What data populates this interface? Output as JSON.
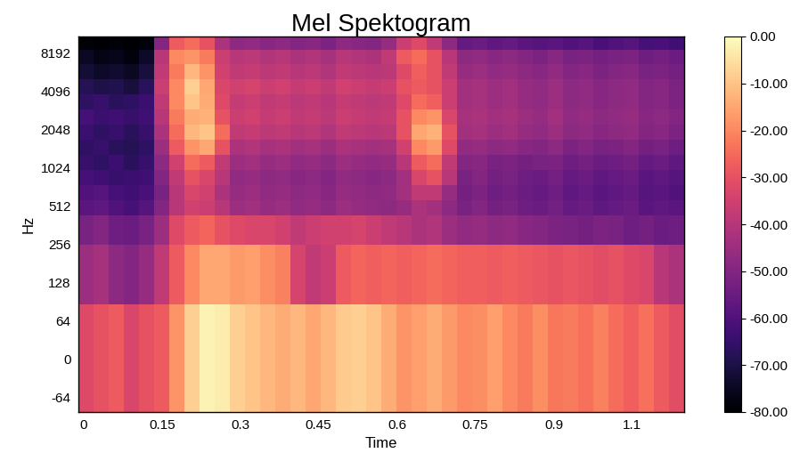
{
  "chart_data": {
    "type": "heatmap",
    "title": "Mel Spektogram",
    "x_label": "Time",
    "y_label": "Hz",
    "log": "y",
    "color": "magma",
    "xlim": [
      -0.01,
      1.15
    ],
    "ylim": [
      -83,
      10980
    ],
    "xticks": [
      0,
      0.15,
      0.3,
      0.45,
      0.6,
      0.75,
      0.9,
      {
        "value": 1.05,
        "label": "1.1"
      }
    ],
    "yticks": [
      -64,
      0,
      64,
      128,
      256,
      512,
      1024,
      2048,
      4096,
      8192
    ],
    "x_edges": [
      -0.01,
      0.019,
      0.048,
      0.077,
      0.106,
      0.135,
      0.164,
      0.193,
      0.222,
      0.251,
      0.28,
      0.309,
      0.338,
      0.367,
      0.396,
      0.425,
      0.454,
      0.483,
      0.512,
      0.541,
      0.57,
      0.599,
      0.628,
      0.657,
      0.686,
      0.715,
      0.744,
      0.773,
      0.802,
      0.831,
      0.86,
      0.889,
      0.918,
      0.947,
      0.976,
      1.005,
      1.034,
      1.063,
      1.092,
      1.121,
      1.15
    ],
    "y_edges": [
      -83,
      87,
      255,
      433,
      569,
      749,
      984,
      1293,
      1700,
      2234,
      2937,
      3859,
      5074,
      6669,
      8621,
      10980
    ],
    "cells": [
      [
        -32,
        -30,
        -28,
        -33,
        -30,
        -28,
        -18,
        -8,
        -2,
        -3,
        -8,
        -10,
        -12,
        -14,
        -12,
        -15,
        -12,
        -9,
        -8,
        -10,
        -14,
        -18,
        -16,
        -14,
        -17,
        -20,
        -19,
        -16,
        -20,
        -22,
        -19,
        -23,
        -22,
        -24,
        -21,
        -25,
        -27,
        -24,
        -28,
        -31
      ],
      [
        -45,
        -43,
        -48,
        -50,
        -46,
        -38,
        -28,
        -20,
        -15,
        -15,
        -17,
        -16,
        -19,
        -21,
        -34,
        -38,
        -36,
        -28,
        -26,
        -27,
        -26,
        -27,
        -26,
        -25,
        -26,
        -27,
        -27,
        -28,
        -27,
        -28,
        -29,
        -30,
        -29,
        -30,
        -31,
        -30,
        -32,
        -33,
        -40,
        -42
      ],
      [
        -52,
        -50,
        -54,
        -55,
        -52,
        -45,
        -32,
        -28,
        -26,
        -30,
        -32,
        -33,
        -33,
        -35,
        -38,
        -36,
        -35,
        -35,
        -34,
        -36,
        -38,
        -40,
        -42,
        -41,
        -45,
        -47,
        -46,
        -48,
        -47,
        -49,
        -50,
        -51,
        -52,
        -53,
        -51,
        -52,
        -54,
        -53,
        -55,
        -54
      ],
      [
        -58,
        -57,
        -60,
        -62,
        -59,
        -50,
        -40,
        -35,
        -36,
        -40,
        -45,
        -44,
        -46,
        -45,
        -47,
        -46,
        -48,
        -45,
        -46,
        -47,
        -48,
        -46,
        -42,
        -44,
        -48,
        -52,
        -50,
        -53,
        -52,
        -54,
        -55,
        -53,
        -56,
        -55,
        -57,
        -56,
        -55,
        -58,
        -57,
        -58
      ],
      [
        -60,
        -59,
        -62,
        -63,
        -61,
        -52,
        -40,
        -33,
        -35,
        -42,
        -46,
        -45,
        -47,
        -46,
        -48,
        -47,
        -49,
        -46,
        -47,
        -48,
        -47,
        -44,
        -38,
        -38,
        -46,
        -53,
        -51,
        -54,
        -53,
        -55,
        -56,
        -54,
        -57,
        -56,
        -58,
        -57,
        -56,
        -59,
        -58,
        -60
      ],
      [
        -62,
        -63,
        -65,
        -64,
        -63,
        -50,
        -38,
        -30,
        -33,
        -40,
        -47,
        -46,
        -48,
        -47,
        -49,
        -48,
        -50,
        -47,
        -48,
        -49,
        -48,
        -44,
        -33,
        -30,
        -40,
        -52,
        -50,
        -53,
        -52,
        -54,
        -55,
        -53,
        -56,
        -55,
        -57,
        -56,
        -55,
        -58,
        -57,
        -59
      ],
      [
        -65,
        -66,
        -64,
        -67,
        -65,
        -48,
        -35,
        -25,
        -28,
        -38,
        -45,
        -44,
        -46,
        -45,
        -47,
        -46,
        -48,
        -45,
        -46,
        -47,
        -46,
        -40,
        -28,
        -25,
        -38,
        -50,
        -49,
        -52,
        -51,
        -53,
        -52,
        -51,
        -54,
        -53,
        -55,
        -54,
        -53,
        -56,
        -55,
        -57
      ],
      [
        -66,
        -65,
        -67,
        -68,
        -66,
        -45,
        -28,
        -18,
        -15,
        -30,
        -42,
        -41,
        -43,
        -42,
        -44,
        -43,
        -45,
        -42,
        -43,
        -44,
        -43,
        -35,
        -20,
        -17,
        -32,
        -47,
        -46,
        -48,
        -47,
        -49,
        -50,
        -48,
        -51,
        -50,
        -52,
        -51,
        -50,
        -53,
        -52,
        -54
      ],
      [
        -64,
        -66,
        -65,
        -67,
        -65,
        -42,
        -25,
        -12,
        -10,
        -25,
        -38,
        -37,
        -39,
        -38,
        -40,
        -39,
        -41,
        -38,
        -39,
        -40,
        -39,
        -30,
        -15,
        -13,
        -30,
        -44,
        -43,
        -45,
        -44,
        -46,
        -47,
        -45,
        -48,
        -47,
        -49,
        -48,
        -47,
        -50,
        -49,
        -51
      ],
      [
        -62,
        -64,
        -63,
        -65,
        -63,
        -40,
        -22,
        -14,
        -13,
        -30,
        -36,
        -35,
        -37,
        -36,
        -38,
        -37,
        -39,
        -36,
        -37,
        -38,
        -37,
        -30,
        -20,
        -18,
        -33,
        -43,
        -42,
        -44,
        -43,
        -45,
        -46,
        -44,
        -47,
        -46,
        -48,
        -47,
        -46,
        -49,
        -48,
        -50
      ],
      [
        -66,
        -65,
        -67,
        -66,
        -64,
        -38,
        -20,
        -10,
        -14,
        -32,
        -37,
        -36,
        -38,
        -37,
        -39,
        -38,
        -40,
        -37,
        -38,
        -39,
        -38,
        -32,
        -25,
        -27,
        -36,
        -44,
        -43,
        -45,
        -44,
        -46,
        -47,
        -45,
        -48,
        -47,
        -49,
        -48,
        -47,
        -50,
        -49,
        -51
      ],
      [
        -68,
        -70,
        -69,
        -71,
        -67,
        -36,
        -20,
        -8,
        -15,
        -33,
        -35,
        -34,
        -36,
        -35,
        -37,
        -36,
        -38,
        -35,
        -36,
        -37,
        -36,
        -30,
        -28,
        -30,
        -36,
        -44,
        -43,
        -45,
        -44,
        -46,
        -47,
        -45,
        -48,
        -47,
        -49,
        -48,
        -47,
        -50,
        -49,
        -51
      ],
      [
        -72,
        -74,
        -73,
        -75,
        -71,
        -38,
        -22,
        -12,
        -18,
        -35,
        -38,
        -37,
        -39,
        -38,
        -40,
        -39,
        -41,
        -38,
        -39,
        -40,
        -39,
        -32,
        -27,
        -30,
        -38,
        -46,
        -45,
        -47,
        -46,
        -48,
        -49,
        -47,
        -50,
        -49,
        -51,
        -50,
        -49,
        -52,
        -51,
        -53
      ],
      [
        -75,
        -77,
        -76,
        -78,
        -74,
        -40,
        -20,
        -18,
        -22,
        -36,
        -40,
        -39,
        -41,
        -40,
        -42,
        -41,
        -43,
        -40,
        -41,
        -42,
        -38,
        -28,
        -25,
        -30,
        -40,
        -48,
        -47,
        -49,
        -48,
        -50,
        -51,
        -49,
        -52,
        -51,
        -53,
        -52,
        -51,
        -54,
        -53,
        -55
      ],
      [
        -79,
        -80,
        -79,
        -80,
        -78,
        -50,
        -28,
        -25,
        -30,
        -42,
        -48,
        -47,
        -49,
        -48,
        -50,
        -49,
        -51,
        -48,
        -49,
        -50,
        -46,
        -36,
        -32,
        -38,
        -48,
        -56,
        -55,
        -57,
        -56,
        -58,
        -59,
        -58,
        -60,
        -59,
        -61,
        -60,
        -59,
        -62,
        -61,
        -63
      ]
    ],
    "colorbar_range": [
      -80,
      0
    ],
    "colorbar_ticks": [
      {
        "value": 0,
        "label": "0.00"
      },
      {
        "value": -10,
        "label": "-10.00"
      },
      {
        "value": -20,
        "label": "-20.00"
      },
      {
        "value": -30,
        "label": "-30.00"
      },
      {
        "value": -40,
        "label": "-40.00"
      },
      {
        "value": -50,
        "label": "-50.00"
      },
      {
        "value": -60,
        "label": "-60.00"
      },
      {
        "value": -70,
        "label": "-70.00"
      },
      {
        "value": -80,
        "label": "-80.00"
      }
    ]
  }
}
